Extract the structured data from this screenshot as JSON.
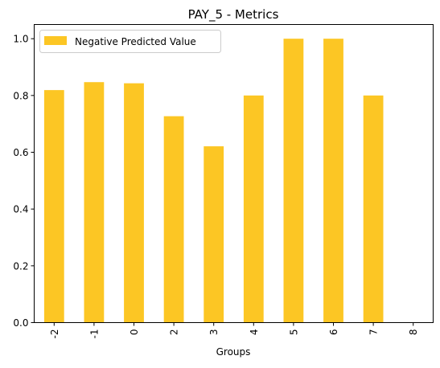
{
  "chart_data": {
    "type": "bar",
    "title": "PAY_5 - Metrics",
    "xlabel": "Groups",
    "ylabel": "",
    "categories": [
      "-2",
      "-1",
      "0",
      "2",
      "3",
      "4",
      "5",
      "6",
      "7",
      "8"
    ],
    "series": [
      {
        "name": "Negative Predicted Value",
        "values": [
          0.819,
          0.847,
          0.843,
          0.727,
          0.621,
          0.8,
          1.0,
          1.0,
          0.8,
          0.0
        ],
        "color": "#fcc624"
      }
    ],
    "ylim": [
      0,
      1.05
    ],
    "yticks": [
      0.0,
      0.2,
      0.4,
      0.6,
      0.8,
      1.0
    ],
    "ytick_labels": [
      "0.0",
      "0.2",
      "0.4",
      "0.6",
      "0.8",
      "1.0"
    ],
    "grid": false,
    "legend_position": "upper-left",
    "x_tick_rotation": "vertical"
  }
}
